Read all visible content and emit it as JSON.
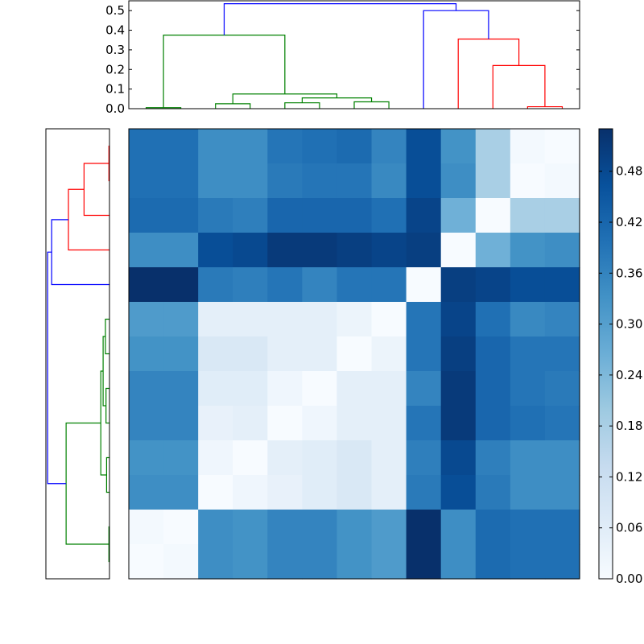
{
  "chart_data": [
    {
      "type": "heatmap",
      "role": "distance-matrix",
      "size": 13,
      "colormap": [
        "#f7fbff",
        "#deebf7",
        "#c6dbef",
        "#9ecae1",
        "#6baed6",
        "#4292c6",
        "#2171b5",
        "#08519c",
        "#08306b"
      ],
      "vmin": 0.0,
      "vmax": 0.53,
      "colorbar_ticks": [
        "0.00",
        "0.06",
        "0.12",
        "0.18",
        "0.24",
        "0.30",
        "0.36",
        "0.42",
        "0.48"
      ],
      "matrix": [
        [
          0.4,
          0.4,
          0.34,
          0.34,
          0.39,
          0.4,
          0.41,
          0.36,
          0.47,
          0.33,
          0.18,
          0.01,
          0.0
        ],
        [
          0.4,
          0.4,
          0.34,
          0.34,
          0.38,
          0.39,
          0.39,
          0.35,
          0.47,
          0.34,
          0.18,
          0.0,
          0.01
        ],
        [
          0.41,
          0.41,
          0.38,
          0.37,
          0.42,
          0.42,
          0.42,
          0.4,
          0.49,
          0.26,
          0.0,
          0.18,
          0.18
        ],
        [
          0.34,
          0.34,
          0.47,
          0.48,
          0.51,
          0.51,
          0.5,
          0.49,
          0.5,
          0.0,
          0.26,
          0.33,
          0.34
        ],
        [
          0.53,
          0.53,
          0.38,
          0.37,
          0.39,
          0.36,
          0.39,
          0.39,
          0.0,
          0.5,
          0.49,
          0.47,
          0.47
        ],
        [
          0.31,
          0.31,
          0.05,
          0.05,
          0.05,
          0.05,
          0.03,
          0.0,
          0.39,
          0.49,
          0.4,
          0.35,
          0.36
        ],
        [
          0.33,
          0.33,
          0.08,
          0.08,
          0.05,
          0.05,
          0.0,
          0.03,
          0.39,
          0.5,
          0.42,
          0.39,
          0.39
        ],
        [
          0.36,
          0.36,
          0.06,
          0.06,
          0.02,
          0.0,
          0.05,
          0.05,
          0.36,
          0.51,
          0.42,
          0.39,
          0.38
        ],
        [
          0.36,
          0.36,
          0.04,
          0.05,
          0.0,
          0.02,
          0.05,
          0.05,
          0.39,
          0.51,
          0.42,
          0.4,
          0.39
        ],
        [
          0.33,
          0.33,
          0.02,
          0.0,
          0.05,
          0.06,
          0.08,
          0.05,
          0.37,
          0.48,
          0.37,
          0.34,
          0.34
        ],
        [
          0.34,
          0.34,
          0.0,
          0.02,
          0.04,
          0.06,
          0.08,
          0.05,
          0.38,
          0.47,
          0.38,
          0.34,
          0.34
        ],
        [
          0.01,
          0.0,
          0.34,
          0.33,
          0.36,
          0.36,
          0.33,
          0.31,
          0.53,
          0.34,
          0.41,
          0.4,
          0.4
        ],
        [
          0.0,
          0.01,
          0.34,
          0.33,
          0.36,
          0.36,
          0.33,
          0.31,
          0.53,
          0.34,
          0.41,
          0.4,
          0.4
        ]
      ]
    },
    {
      "type": "dendrogram",
      "orientation": "top",
      "leaf_count": 13,
      "y_ticks": [
        "0.0",
        "0.1",
        "0.2",
        "0.3",
        "0.4",
        "0.5"
      ],
      "ylim": [
        0,
        0.55
      ],
      "links": [
        {
          "leaf_left": 0,
          "leaf_right": 1,
          "h_left": 0.0,
          "h_right": 0.0,
          "h": 0.005,
          "color": "#008000"
        },
        {
          "leaf_left": 2,
          "leaf_right": 3,
          "h_left": 0.0,
          "h_right": 0.0,
          "h": 0.025,
          "color": "#008000"
        },
        {
          "leaf_left": 4,
          "leaf_right": 5,
          "h_left": 0.0,
          "h_right": 0.0,
          "h": 0.03,
          "color": "#008000"
        },
        {
          "leaf_left": 6,
          "leaf_right": 7,
          "h_left": 0.0,
          "h_right": 0.0,
          "h": 0.035,
          "color": "#008000"
        },
        {
          "leaf_left": 4.5,
          "leaf_right": 6.5,
          "h_left": 0.03,
          "h_right": 0.035,
          "h": 0.055,
          "color": "#008000"
        },
        {
          "leaf_left": 2.5,
          "leaf_right": 5.5,
          "h_left": 0.025,
          "h_right": 0.055,
          "h": 0.075,
          "color": "#008000"
        },
        {
          "leaf_left": 0.5,
          "leaf_right": 4.0,
          "h_left": 0.005,
          "h_right": 0.075,
          "h": 0.375,
          "color": "#008000"
        },
        {
          "leaf_left": 11,
          "leaf_right": 12,
          "h_left": 0.0,
          "h_right": 0.0,
          "h": 0.01,
          "color": "#ff0000"
        },
        {
          "leaf_left": 10,
          "leaf_right": 11.5,
          "h_left": 0.0,
          "h_right": 0.01,
          "h": 0.22,
          "color": "#ff0000"
        },
        {
          "leaf_left": 9,
          "leaf_right": 10.75,
          "h_left": 0.0,
          "h_right": 0.22,
          "h": 0.355,
          "color": "#ff0000"
        },
        {
          "leaf_left": 8,
          "leaf_right": 9.875,
          "h_left": 0.0,
          "h_right": 0.355,
          "h": 0.5,
          "color": "#0000ff"
        },
        {
          "leaf_left": 2.25,
          "leaf_right": 8.9375,
          "h_left": 0.375,
          "h_right": 0.5,
          "h": 0.535,
          "color": "#0000ff"
        }
      ]
    },
    {
      "type": "dendrogram",
      "orientation": "left",
      "leaf_count": 13,
      "links": [
        {
          "leaf_top": 0,
          "leaf_bottom": 1,
          "h_top": 0.0,
          "h_bottom": 0.0,
          "h": 0.005,
          "color": "#ff0000"
        },
        {
          "leaf_top": 0.5,
          "leaf_bottom": 2,
          "h_top": 0.005,
          "h_bottom": 0.0,
          "h": 0.22,
          "color": "#ff0000"
        },
        {
          "leaf_top": 1.25,
          "leaf_bottom": 3,
          "h_top": 0.22,
          "h_bottom": 0.0,
          "h": 0.355,
          "color": "#ff0000"
        },
        {
          "leaf_top": 2.125,
          "leaf_bottom": 4,
          "h_top": 0.355,
          "h_bottom": 0.0,
          "h": 0.5,
          "color": "#0000ff"
        },
        {
          "leaf_top": 5,
          "leaf_bottom": 6,
          "h_top": 0.0,
          "h_bottom": 0.0,
          "h": 0.035,
          "color": "#008000"
        },
        {
          "leaf_top": 7,
          "leaf_bottom": 8,
          "h_top": 0.0,
          "h_bottom": 0.0,
          "h": 0.03,
          "color": "#008000"
        },
        {
          "leaf_top": 5.5,
          "leaf_bottom": 7.5,
          "h_top": 0.035,
          "h_bottom": 0.03,
          "h": 0.055,
          "color": "#008000"
        },
        {
          "leaf_top": 9,
          "leaf_bottom": 10,
          "h_top": 0.0,
          "h_bottom": 0.0,
          "h": 0.025,
          "color": "#008000"
        },
        {
          "leaf_top": 6.5,
          "leaf_bottom": 9.5,
          "h_top": 0.055,
          "h_bottom": 0.025,
          "h": 0.075,
          "color": "#008000"
        },
        {
          "leaf_top": 11,
          "leaf_bottom": 12,
          "h_top": 0.0,
          "h_bottom": 0.0,
          "h": 0.005,
          "color": "#008000"
        },
        {
          "leaf_top": 8.0,
          "leaf_bottom": 11.5,
          "h_top": 0.075,
          "h_bottom": 0.005,
          "h": 0.375,
          "color": "#008000"
        },
        {
          "leaf_top": 3.0625,
          "leaf_bottom": 9.75,
          "h_top": 0.5,
          "h_bottom": 0.375,
          "h": 0.535,
          "color": "#0000ff"
        }
      ]
    }
  ]
}
